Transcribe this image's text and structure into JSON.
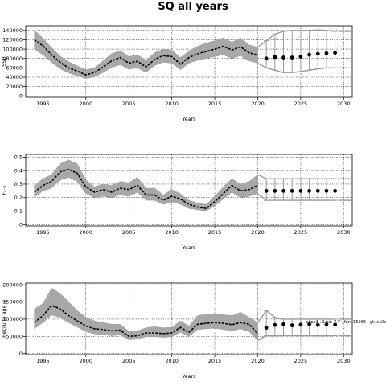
{
  "figure": {
    "title": "SQ all years"
  },
  "chart_data": [
    {
      "type": "line",
      "xlabel": "Years",
      "ylabel": "SSB",
      "xlim": [
        1993,
        2031
      ],
      "ylim": [
        -3000,
        150000
      ],
      "x_ticks": [
        1995,
        2000,
        2005,
        2010,
        2015,
        2020,
        2025,
        2030
      ],
      "y_ticks": [
        0,
        20000,
        40000,
        60000,
        80000,
        100000,
        120000,
        140000
      ],
      "grid": "dotted",
      "historical": {
        "x": [
          1994,
          1995,
          1996,
          1997,
          1998,
          1999,
          2000,
          2001,
          2002,
          2003,
          2004,
          2005,
          2006,
          2007,
          2008,
          2009,
          2010,
          2011,
          2012,
          2013,
          2014,
          2015,
          2016,
          2017,
          2018,
          2019,
          2020
        ],
        "y": [
          120000,
          107000,
          88000,
          72000,
          60000,
          53000,
          45000,
          50000,
          62000,
          75000,
          82000,
          70000,
          74000,
          62000,
          78000,
          86000,
          84000,
          68000,
          82000,
          90000,
          95000,
          100000,
          106000,
          98000,
          105000,
          92000,
          87000
        ],
        "low": [
          100000,
          88000,
          72000,
          58000,
          49000,
          43000,
          37000,
          41000,
          50000,
          61000,
          67000,
          57000,
          60000,
          50000,
          65000,
          72000,
          70000,
          56000,
          70000,
          76000,
          80000,
          84000,
          88000,
          80000,
          86000,
          75000,
          70000
        ],
        "high": [
          140000,
          124000,
          103000,
          85000,
          73000,
          64000,
          56000,
          60000,
          75000,
          90000,
          97000,
          84000,
          88000,
          76000,
          92000,
          100000,
          98000,
          82000,
          96000,
          106000,
          113000,
          118000,
          124000,
          115000,
          124000,
          109000,
          104000
        ]
      },
      "projection": {
        "x": [
          2021,
          2022,
          2023,
          2024,
          2025,
          2026,
          2027,
          2028,
          2029
        ],
        "y": [
          80000,
          83000,
          82000,
          82000,
          84000,
          88000,
          90000,
          91000,
          92000
        ],
        "low": [
          60000,
          55000,
          50000,
          50000,
          52000,
          55000,
          58000,
          60000,
          60000
        ],
        "high": [
          118000,
          132000,
          138000,
          140000,
          140000,
          140000,
          141000,
          140000,
          138000
        ]
      }
    },
    {
      "type": "line",
      "xlabel": "Years",
      "ylabel": "F₄₋₇",
      "xlim": [
        1993,
        2031
      ],
      "ylim": [
        -0.01,
        0.52
      ],
      "x_ticks": [
        1995,
        2000,
        2005,
        2010,
        2015,
        2020,
        2025,
        2030
      ],
      "y_ticks": [
        0.0,
        0.1,
        0.2,
        0.3,
        0.4,
        0.5
      ],
      "grid": "dotted",
      "historical": {
        "x": [
          1994,
          1995,
          1996,
          1997,
          1998,
          1999,
          2000,
          2001,
          2002,
          2003,
          2004,
          2005,
          2006,
          2007,
          2008,
          2009,
          2010,
          2011,
          2012,
          2013,
          2014,
          2015,
          2016,
          2017,
          2018,
          2019,
          2020
        ],
        "y": [
          0.24,
          0.29,
          0.32,
          0.39,
          0.41,
          0.38,
          0.28,
          0.24,
          0.26,
          0.24,
          0.27,
          0.26,
          0.29,
          0.22,
          0.22,
          0.18,
          0.21,
          0.19,
          0.15,
          0.13,
          0.12,
          0.17,
          0.23,
          0.29,
          0.25,
          0.26,
          0.29
        ],
        "low": [
          0.2,
          0.25,
          0.27,
          0.33,
          0.35,
          0.32,
          0.23,
          0.2,
          0.21,
          0.2,
          0.22,
          0.21,
          0.24,
          0.18,
          0.18,
          0.15,
          0.17,
          0.15,
          0.12,
          0.11,
          0.1,
          0.14,
          0.19,
          0.24,
          0.2,
          0.21,
          0.23
        ],
        "high": [
          0.29,
          0.34,
          0.37,
          0.45,
          0.48,
          0.45,
          0.33,
          0.28,
          0.3,
          0.29,
          0.32,
          0.31,
          0.35,
          0.27,
          0.27,
          0.22,
          0.26,
          0.23,
          0.18,
          0.16,
          0.15,
          0.21,
          0.28,
          0.34,
          0.3,
          0.32,
          0.37
        ]
      },
      "projection": {
        "x": [
          2021,
          2022,
          2023,
          2024,
          2025,
          2026,
          2027,
          2028,
          2029
        ],
        "y": [
          0.25,
          0.25,
          0.25,
          0.25,
          0.25,
          0.25,
          0.25,
          0.25,
          0.25
        ],
        "low": [
          0.18,
          0.18,
          0.18,
          0.18,
          0.18,
          0.18,
          0.18,
          0.18,
          0.18
        ],
        "high": [
          0.34,
          0.34,
          0.34,
          0.34,
          0.34,
          0.34,
          0.34,
          0.34,
          0.34
        ]
      }
    },
    {
      "type": "line",
      "xlabel": "Years",
      "ylabel": "Recruits age 1",
      "xlim": [
        1993,
        2031
      ],
      "ylim": [
        -3000,
        205000
      ],
      "x_ticks": [
        1995,
        2000,
        2005,
        2010,
        2015,
        2020,
        2025,
        2030
      ],
      "y_ticks": [
        0,
        50000,
        100000,
        150000,
        200000
      ],
      "y_tick_labels": [
        "0",
        "50000",
        "100000",
        "150000",
        "200000"
      ],
      "grid": "dotted",
      "annotation": "ccpa3 : 1 nd: 7.7 , fqn: 15966 , gt: ec2c",
      "historical": {
        "x": [
          1994,
          1995,
          1996,
          1997,
          1998,
          1999,
          2000,
          2001,
          2002,
          2003,
          2004,
          2005,
          2006,
          2007,
          2008,
          2009,
          2010,
          2011,
          2012,
          2013,
          2014,
          2015,
          2016,
          2017,
          2018,
          2019,
          2020
        ],
        "y": [
          90000,
          110000,
          140000,
          130000,
          110000,
          95000,
          80000,
          72000,
          70000,
          66000,
          68000,
          50000,
          52000,
          60000,
          60000,
          58000,
          60000,
          76000,
          62000,
          85000,
          88000,
          90000,
          88000,
          84000,
          90000,
          85000,
          58000
        ],
        "low": [
          72000,
          90000,
          112000,
          105000,
          90000,
          77000,
          64000,
          57000,
          55000,
          52000,
          54000,
          40000,
          42000,
          49000,
          49000,
          47000,
          49000,
          62000,
          50000,
          70000,
          72000,
          74000,
          70000,
          66000,
          72000,
          64000,
          38000
        ],
        "high": [
          130000,
          145000,
          190000,
          175000,
          150000,
          125000,
          105000,
          95000,
          90000,
          85000,
          85000,
          65000,
          66000,
          75000,
          78000,
          75000,
          76000,
          95000,
          80000,
          110000,
          115000,
          116000,
          113000,
          110000,
          120000,
          105000,
          90000
        ]
      },
      "projection": {
        "x": [
          2021,
          2022,
          2023,
          2024,
          2025,
          2026,
          2027,
          2028,
          2029
        ],
        "y": [
          75000,
          83000,
          85000,
          82000,
          84000,
          85000,
          83000,
          85000,
          84000
        ],
        "low": [
          52000,
          52000,
          52000,
          52000,
          52000,
          52000,
          52000,
          52000,
          52000
        ],
        "high": [
          125000,
          105000,
          100000,
          100000,
          100000,
          100000,
          100000,
          100000,
          100000
        ]
      }
    }
  ]
}
